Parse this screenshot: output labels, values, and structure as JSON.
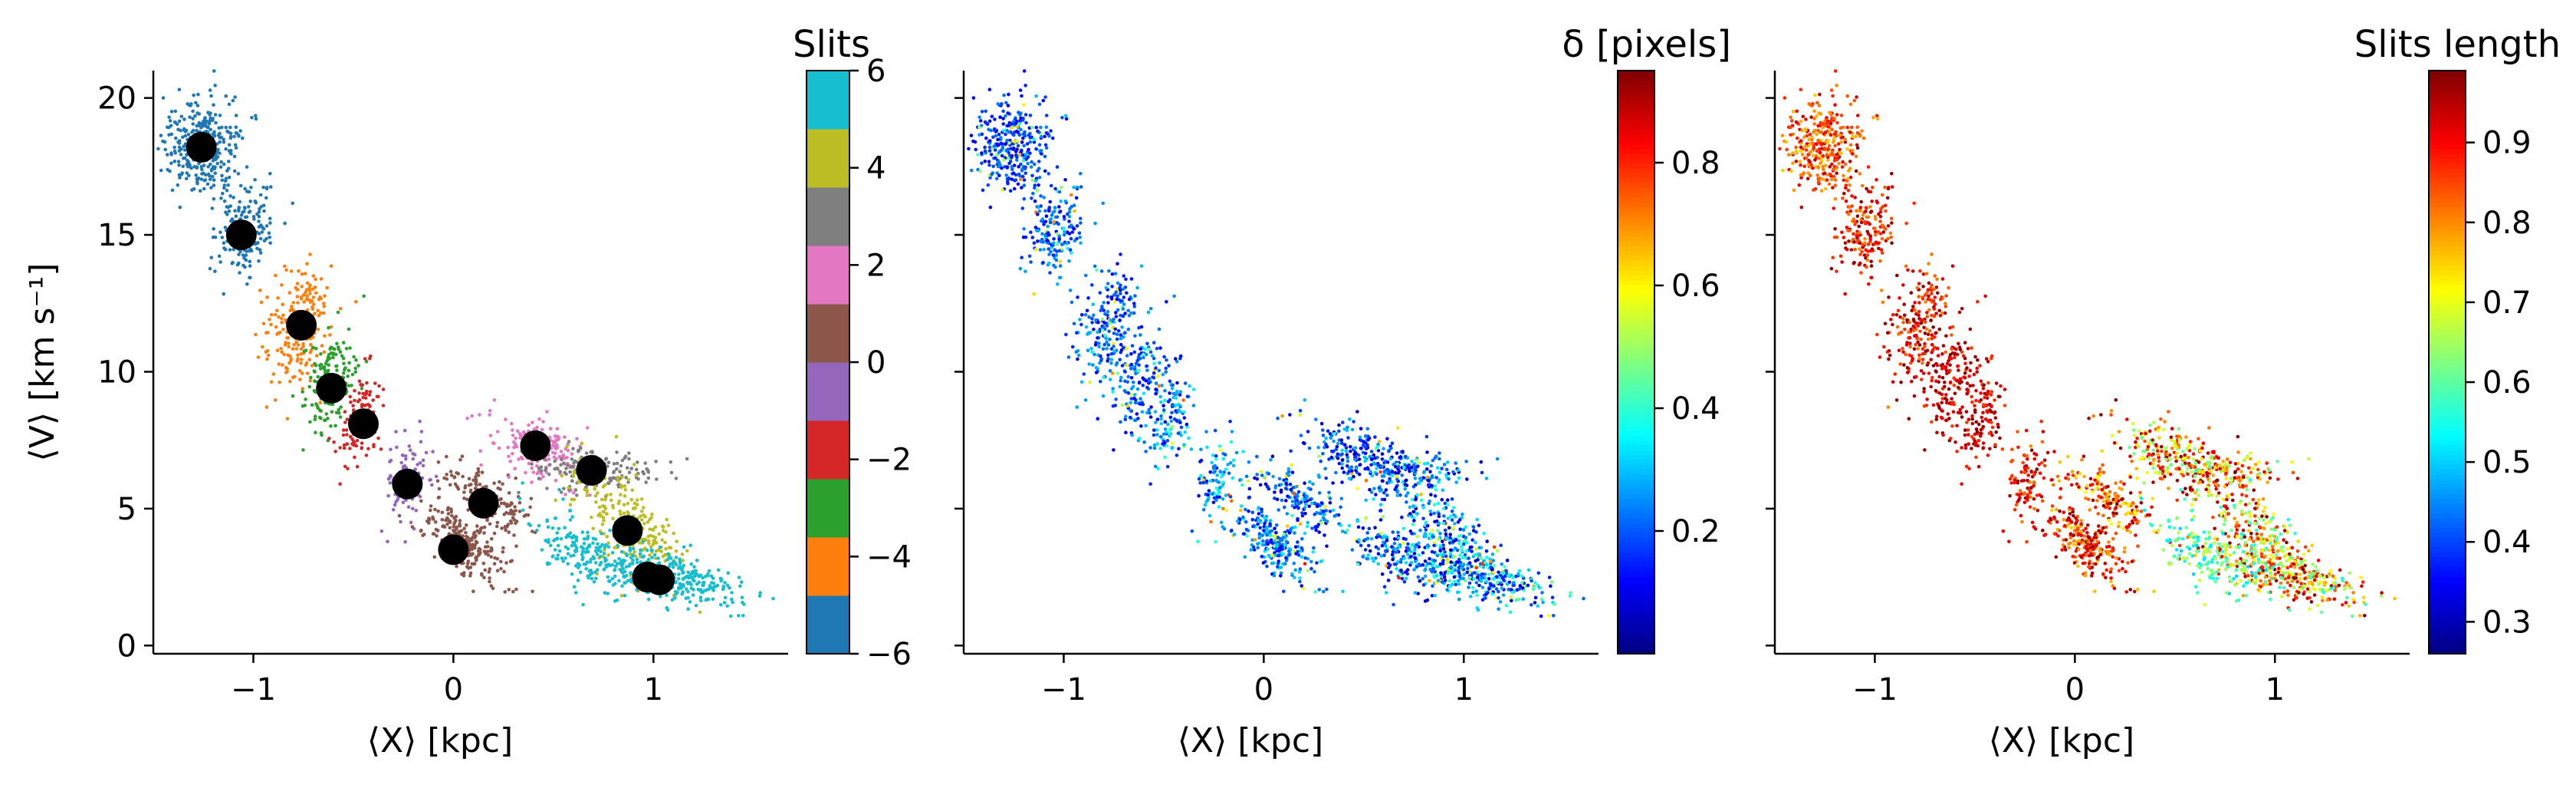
{
  "panels": [
    {
      "id": "slits",
      "xlabel": "⟨X⟩ [kpc]",
      "ylabel": "⟨V⟩ [km s⁻¹]",
      "xlim": [
        -1.5,
        1.75
      ],
      "ylim": [
        -0.3,
        21
      ],
      "xticks": [
        {
          "v": -1,
          "label": "−1"
        },
        {
          "v": 0,
          "label": "0"
        },
        {
          "v": 1,
          "label": "1"
        }
      ],
      "yticks": [
        {
          "v": 0,
          "label": "0"
        },
        {
          "v": 5,
          "label": "5"
        },
        {
          "v": 10,
          "label": "10"
        },
        {
          "v": 15,
          "label": "15"
        },
        {
          "v": 20,
          "label": "20"
        }
      ],
      "colorbar": {
        "title": "Slits",
        "type": "discrete",
        "range": [
          -6,
          6
        ],
        "ticks": [
          {
            "v": -6,
            "label": "−6"
          },
          {
            "v": -4,
            "label": "−4"
          },
          {
            "v": -2,
            "label": "−2"
          },
          {
            "v": 0,
            "label": "0"
          },
          {
            "v": 2,
            "label": "2"
          },
          {
            "v": 4,
            "label": "4"
          },
          {
            "v": 6,
            "label": "6"
          }
        ],
        "colors": [
          "#1f77b4",
          "#ff7f0e",
          "#2ca02c",
          "#d62728",
          "#9467bd",
          "#8c564b",
          "#e377c2",
          "#7f7f7f",
          "#bcbd22",
          "#17becf"
        ]
      }
    },
    {
      "id": "delta",
      "xlabel": "⟨X⟩ [kpc]",
      "xlim": [
        -1.5,
        1.75
      ],
      "ylim": [
        -0.3,
        21
      ],
      "xticks": [
        {
          "v": -1,
          "label": "−1"
        },
        {
          "v": 0,
          "label": "0"
        },
        {
          "v": 1,
          "label": "1"
        }
      ],
      "colorbar": {
        "title": "δ [pixels]",
        "type": "jet",
        "range": [
          0.0,
          0.95
        ],
        "ticks": [
          {
            "v": 0.2,
            "label": "0.2"
          },
          {
            "v": 0.4,
            "label": "0.4"
          },
          {
            "v": 0.6,
            "label": "0.6"
          },
          {
            "v": 0.8,
            "label": "0.8"
          }
        ]
      }
    },
    {
      "id": "length",
      "xlabel": "⟨X⟩ [kpc]",
      "xlim": [
        -1.5,
        1.75
      ],
      "ylim": [
        -0.3,
        21
      ],
      "xticks": [
        {
          "v": -1,
          "label": "−1"
        },
        {
          "v": 0,
          "label": "0"
        },
        {
          "v": 1,
          "label": "1"
        }
      ],
      "colorbar": {
        "title": "Slits length",
        "type": "jet",
        "range": [
          0.26,
          0.99
        ],
        "ticks": [
          {
            "v": 0.3,
            "label": "0.3"
          },
          {
            "v": 0.4,
            "label": "0.4"
          },
          {
            "v": 0.5,
            "label": "0.5"
          },
          {
            "v": 0.6,
            "label": "0.6"
          },
          {
            "v": 0.7,
            "label": "0.7"
          },
          {
            "v": 0.8,
            "label": "0.8"
          },
          {
            "v": 0.9,
            "label": "0.9"
          }
        ]
      }
    }
  ],
  "chart_data": {
    "type": "scatter",
    "xlabel": "⟨X⟩ [kpc]",
    "ylabel": "⟨V⟩ [km s⁻¹]",
    "xlim": [
      -1.5,
      1.75
    ],
    "ylim": [
      -0.3,
      21
    ],
    "slit_centers": [
      {
        "x": -1.26,
        "y": 18.2,
        "slit": -5
      },
      {
        "x": -1.06,
        "y": 15.0,
        "slit": -5
      },
      {
        "x": -0.76,
        "y": 11.7,
        "slit": -4
      },
      {
        "x": -0.61,
        "y": 9.4,
        "slit": -3
      },
      {
        "x": -0.45,
        "y": 8.1,
        "slit": -2
      },
      {
        "x": -0.23,
        "y": 5.9,
        "slit": -1
      },
      {
        "x": 0.0,
        "y": 3.5,
        "slit": 0
      },
      {
        "x": 0.15,
        "y": 5.2,
        "slit": 0
      },
      {
        "x": 0.41,
        "y": 7.3,
        "slit": 2
      },
      {
        "x": 0.69,
        "y": 6.4,
        "slit": 3
      },
      {
        "x": 0.87,
        "y": 4.2,
        "slit": 4
      },
      {
        "x": 0.97,
        "y": 2.5,
        "slit": 5
      },
      {
        "x": 1.03,
        "y": 2.4,
        "slit": 5
      }
    ],
    "clusters": [
      {
        "cx": -1.25,
        "cy": 18.3,
        "sx": 0.1,
        "sy": 0.9,
        "rot": -0.35,
        "n": 320,
        "slit": -5,
        "delta": [
          0.1,
          0.25
        ],
        "len": [
          0.75,
          0.95
        ]
      },
      {
        "cx": -1.05,
        "cy": 15.3,
        "sx": 0.07,
        "sy": 0.9,
        "rot": -0.25,
        "n": 180,
        "slit": -5,
        "delta": [
          0.1,
          0.3
        ],
        "len": [
          0.8,
          0.99
        ]
      },
      {
        "cx": -0.77,
        "cy": 11.8,
        "sx": 0.08,
        "sy": 1.1,
        "rot": -0.3,
        "n": 220,
        "slit": -4,
        "delta": [
          0.1,
          0.3
        ],
        "len": [
          0.8,
          0.99
        ]
      },
      {
        "cx": -0.62,
        "cy": 9.6,
        "sx": 0.06,
        "sy": 0.9,
        "rot": -0.3,
        "n": 150,
        "slit": -3,
        "delta": [
          0.1,
          0.3
        ],
        "len": [
          0.85,
          0.99
        ]
      },
      {
        "cx": -0.46,
        "cy": 8.3,
        "sx": 0.05,
        "sy": 0.9,
        "rot": -0.3,
        "n": 120,
        "slit": -2,
        "delta": [
          0.1,
          0.35
        ],
        "len": [
          0.85,
          0.99
        ]
      },
      {
        "cx": -0.24,
        "cy": 6.0,
        "sx": 0.05,
        "sy": 0.8,
        "rot": -0.3,
        "n": 100,
        "slit": -1,
        "delta": [
          0.1,
          0.4
        ],
        "len": [
          0.8,
          0.99
        ]
      },
      {
        "cx": 0.05,
        "cy": 3.8,
        "sx": 0.12,
        "sy": 0.5,
        "rot": -0.55,
        "n": 240,
        "slit": 0,
        "delta": [
          0.1,
          0.35
        ],
        "len": [
          0.75,
          0.99
        ]
      },
      {
        "cx": 0.18,
        "cy": 5.3,
        "sx": 0.12,
        "sy": 0.4,
        "rot": -0.4,
        "n": 160,
        "slit": 0,
        "delta": [
          0.05,
          0.3
        ],
        "len": [
          0.7,
          0.99
        ]
      },
      {
        "cx": 0.42,
        "cy": 7.2,
        "sx": 0.12,
        "sy": 0.55,
        "rot": -0.2,
        "n": 160,
        "slit": 2,
        "delta": [
          0.05,
          0.3
        ],
        "len": [
          0.6,
          0.99
        ]
      },
      {
        "cx": 0.72,
        "cy": 6.4,
        "sx": 0.16,
        "sy": 0.35,
        "rot": 0.0,
        "n": 170,
        "slit": 3,
        "delta": [
          0.05,
          0.35
        ],
        "len": [
          0.6,
          0.99
        ]
      },
      {
        "cx": 0.88,
        "cy": 4.3,
        "sx": 0.16,
        "sy": 0.7,
        "rot": -0.6,
        "n": 260,
        "slit": 4,
        "delta": [
          0.05,
          0.4
        ],
        "len": [
          0.55,
          0.99
        ]
      },
      {
        "cx": 1.05,
        "cy": 2.6,
        "sx": 0.2,
        "sy": 0.4,
        "rot": -0.2,
        "n": 320,
        "slit": 5,
        "delta": [
          0.05,
          0.45
        ],
        "len": [
          0.55,
          0.99
        ]
      },
      {
        "cx": 0.65,
        "cy": 3.4,
        "sx": 0.14,
        "sy": 0.6,
        "rot": -0.5,
        "n": 160,
        "slit": 5,
        "delta": [
          0.05,
          0.35
        ],
        "len": [
          0.5,
          0.7
        ]
      }
    ]
  }
}
